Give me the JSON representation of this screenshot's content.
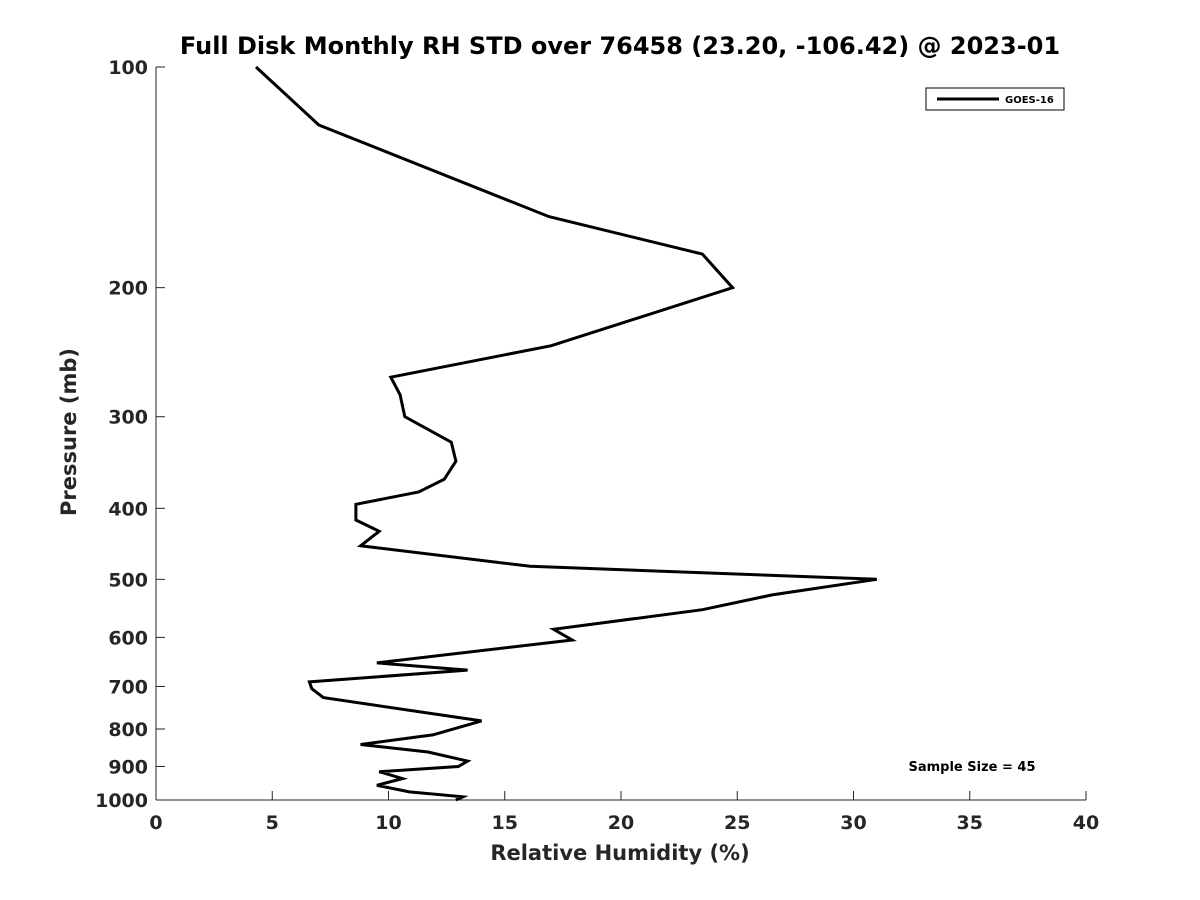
{
  "chart_data": {
    "type": "line",
    "title": "Full Disk Monthly RH STD over 76458 (23.20, -106.42) @ 2023-01",
    "xlabel": "Relative Humidity (%)",
    "ylabel": "Pressure (mb)",
    "xlim": [
      0,
      40
    ],
    "ylim": [
      100,
      1000
    ],
    "y_scale": "log",
    "y_reversed": true,
    "x_ticks": [
      0,
      5,
      10,
      15,
      20,
      25,
      30,
      35,
      40
    ],
    "x_tick_labels": [
      "0",
      "5",
      "10",
      "15",
      "20",
      "25",
      "30",
      "35",
      "40"
    ],
    "y_ticks": [
      100,
      200,
      300,
      400,
      500,
      600,
      700,
      800,
      900,
      1000
    ],
    "y_tick_labels": [
      "100",
      "200",
      "300",
      "400",
      "500",
      "600",
      "700",
      "800",
      "900",
      "1000"
    ],
    "grid": false,
    "legend_position": "top-right",
    "annotation": "Sample Size = 45",
    "series": [
      {
        "name": "GOES-16",
        "color": "#000000",
        "x": [
          4.3,
          7.0,
          16.9,
          23.5,
          24.8,
          17.0,
          10.1,
          10.5,
          10.7,
          12.7,
          12.9,
          12.4,
          11.3,
          8.6,
          8.6,
          9.6,
          8.8,
          16.1,
          31.0,
          26.5,
          23.5,
          17.1,
          17.9,
          9.5,
          13.4,
          6.6,
          6.7,
          7.2,
          14.0,
          11.9,
          8.8,
          11.7,
          13.4,
          13.0,
          9.6,
          10.6,
          9.5,
          10.9,
          13.2,
          12.9
        ],
        "y": [
          100,
          120,
          160,
          180,
          200,
          240,
          265,
          280,
          300,
          325,
          345,
          365,
          380,
          395,
          415,
          430,
          450,
          480,
          500,
          525,
          550,
          585,
          605,
          650,
          665,
          690,
          705,
          725,
          780,
          815,
          840,
          860,
          885,
          900,
          915,
          935,
          955,
          975,
          990,
          1000
        ]
      }
    ]
  }
}
